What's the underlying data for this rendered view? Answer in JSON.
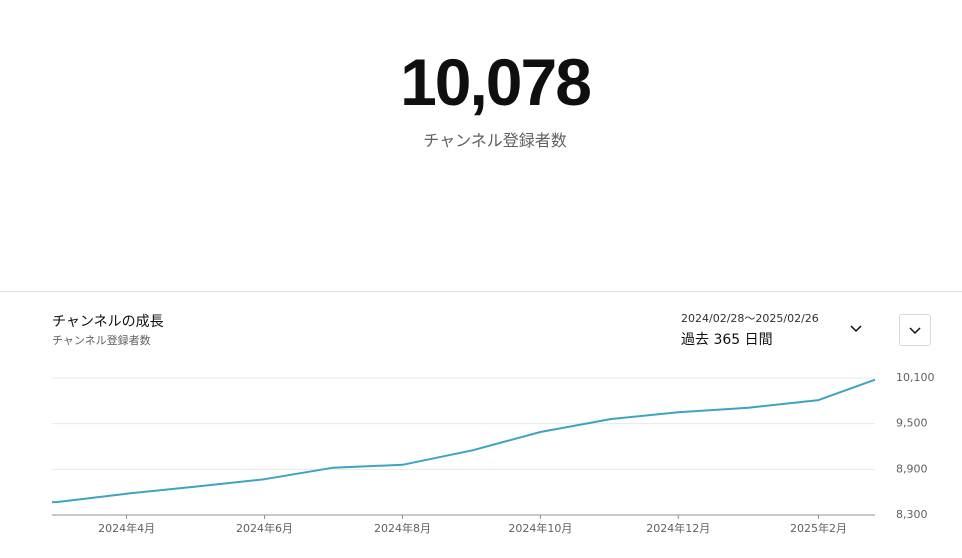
{
  "header": {
    "value": "10,078",
    "label": "チャンネル登録者数"
  },
  "card": {
    "title": "チャンネルの成長",
    "subtitle": "チャンネル登録者数",
    "range": {
      "dates": "2024/02/28～2025/02/26",
      "label": "過去 365 日間"
    }
  },
  "chart_data": {
    "type": "line",
    "x": [
      "2024-02-28",
      "2024-03",
      "2024-04",
      "2024-05",
      "2024-06",
      "2024-07",
      "2024-08",
      "2024-09",
      "2024-10",
      "2024-11",
      "2024-12",
      "2025-01",
      "2025-02",
      "2025-02-26"
    ],
    "series": [
      {
        "name": "チャンネル登録者数",
        "color": "#3ea3c2",
        "values": [
          8470,
          8470,
          8580,
          8670,
          8770,
          8920,
          8960,
          9150,
          9390,
          9560,
          9650,
          9710,
          9810,
          10078
        ]
      }
    ],
    "xlim": [
      "2024-02-28",
      "2025-02-26"
    ],
    "xticks": [
      {
        "value": "2024-04",
        "label": "2024年4月"
      },
      {
        "value": "2024-06",
        "label": "2024年6月"
      },
      {
        "value": "2024-08",
        "label": "2024年8月"
      },
      {
        "value": "2024-10",
        "label": "2024年10月"
      },
      {
        "value": "2024-12",
        "label": "2024年12月"
      },
      {
        "value": "2025-02",
        "label": "2025年2月"
      }
    ],
    "ylim": [
      8300,
      10100
    ],
    "yticks": [
      {
        "value": 8300,
        "label": "8,300"
      },
      {
        "value": 8900,
        "label": "8,900"
      },
      {
        "value": 9500,
        "label": "9,500"
      },
      {
        "value": 10100,
        "label": "10,100"
      }
    ],
    "grid": true
  }
}
